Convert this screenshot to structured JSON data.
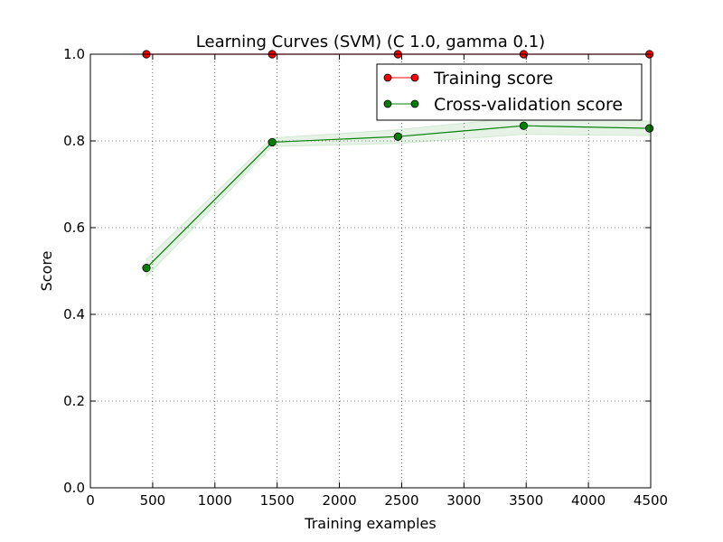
{
  "chart_data": {
    "type": "line",
    "title": "Learning Curves (SVM) (C 1.0, gamma 0.1)",
    "xlabel": "Training examples",
    "ylabel": "Score",
    "xlim": [
      0,
      4500
    ],
    "ylim": [
      0.0,
      1.0
    ],
    "xticks": [
      "0",
      "500",
      "1000",
      "1500",
      "2000",
      "2500",
      "3000",
      "3500",
      "4000",
      "4500"
    ],
    "yticks": [
      "0.0",
      "0.2",
      "0.4",
      "0.6",
      "0.8",
      "1.0"
    ],
    "grid": true,
    "legend_position": "top-right",
    "x": [
      450,
      1460,
      2470,
      3480,
      4490
    ],
    "series": [
      {
        "name": "Training score",
        "color": "#ff0000",
        "values": [
          1.0,
          1.0,
          1.0,
          1.0,
          1.0
        ],
        "band_low": [
          1.0,
          1.0,
          1.0,
          1.0,
          1.0
        ],
        "band_high": [
          1.0,
          1.0,
          1.0,
          1.0,
          1.0
        ]
      },
      {
        "name": "Cross-validation score",
        "color": "#008000",
        "values": [
          0.507,
          0.797,
          0.81,
          0.835,
          0.829
        ],
        "band_low": [
          0.487,
          0.787,
          0.794,
          0.815,
          0.812
        ],
        "band_high": [
          0.527,
          0.807,
          0.826,
          0.855,
          0.846
        ]
      }
    ]
  }
}
